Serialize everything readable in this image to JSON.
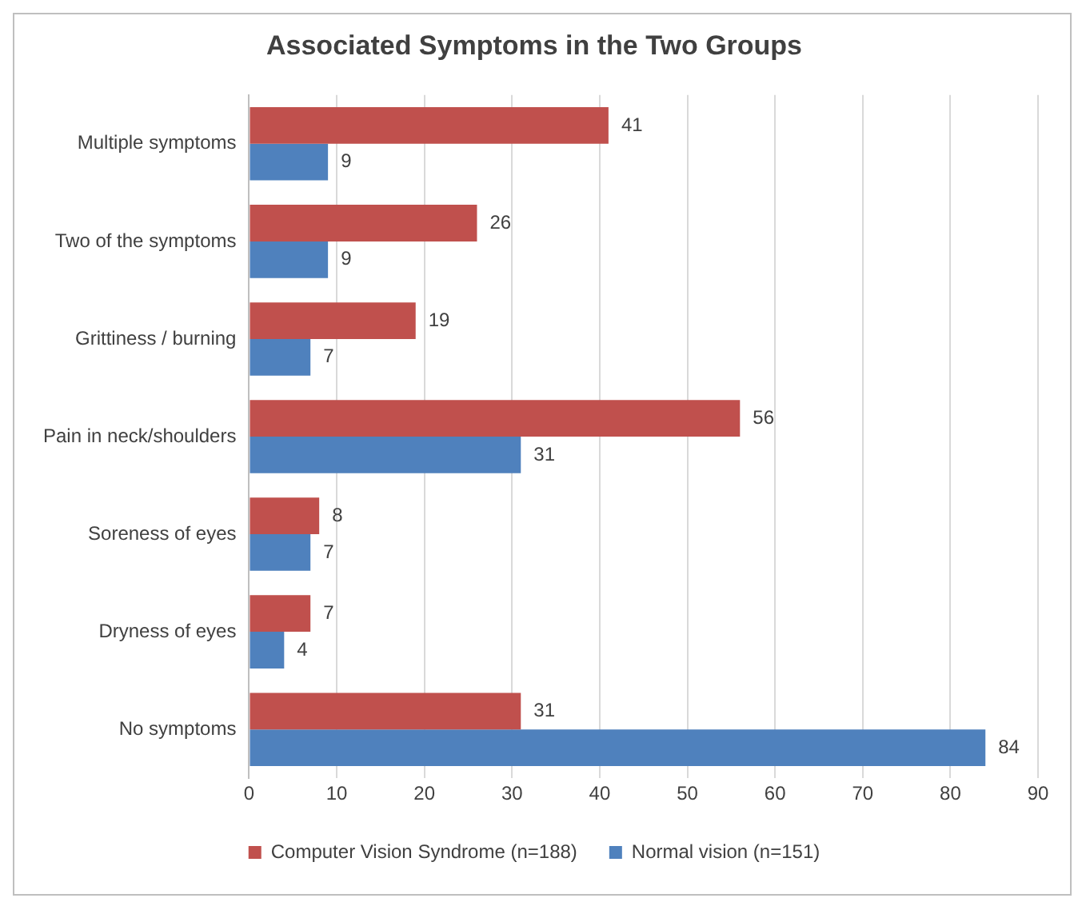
{
  "chart_data": {
    "type": "bar",
    "orientation": "horizontal",
    "title": "Associated Symptoms in the Two Groups",
    "categories": [
      "Multiple symptoms",
      "Two of the symptoms",
      "Grittiness / burning",
      "Pain in neck/shoulders",
      "Soreness of eyes",
      "Dryness of eyes",
      "No symptoms"
    ],
    "series": [
      {
        "name": "Computer Vision Syndrome (n=188)",
        "color": "#c0504d",
        "values": [
          41,
          26,
          19,
          56,
          8,
          7,
          31
        ]
      },
      {
        "name": "Normal vision (n=151)",
        "color": "#4f81bd",
        "values": [
          9,
          9,
          7,
          31,
          7,
          4,
          84
        ]
      }
    ],
    "xlim": [
      0,
      90
    ],
    "xticks": [
      0,
      10,
      20,
      30,
      40,
      50,
      60,
      70,
      80,
      90
    ],
    "grid": "x",
    "legend": "bottom",
    "data_labels": true
  }
}
